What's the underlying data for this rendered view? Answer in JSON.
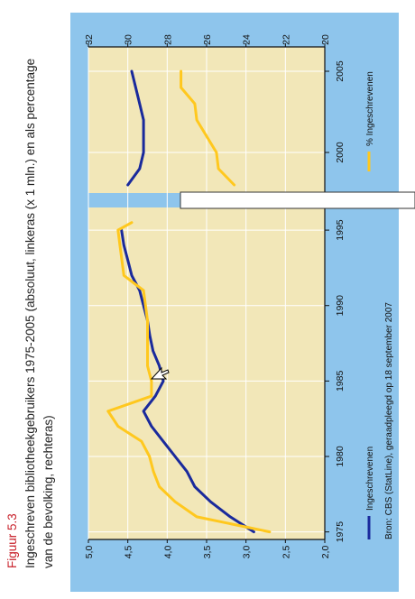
{
  "figure": {
    "label": "Figuur 5.3",
    "caption_line1": "Ingeschreven bibliotheekgebruikers 1975-2005 (absoluut, linkeras (x 1 mln.) en als percentage",
    "caption_line2": "van de bevolking, rechteras)"
  },
  "legend": {
    "series_1_label": "Ingeschrevenen",
    "series_2_label": "% Ingeschrevenen"
  },
  "source": "Bron: CBS (StatLine), geraadpleegd op 18 september 2007",
  "colors": {
    "panel_bg": "#8ec5ec",
    "plot_bg": "#f2e7b8",
    "grid": "#ffffff",
    "series_1": "#1a2a9c",
    "series_2": "#ffc81e",
    "label_red": "#c8202a"
  },
  "chart_data": {
    "type": "line",
    "rotated": "90-deg-clockwise",
    "axis_break": "between 1995 and 1998",
    "x_left_ticks": [
      "1975",
      "1980",
      "1985",
      "1990",
      "1995"
    ],
    "x_right_ticks": [
      "2000",
      "2005"
    ],
    "xlim_left": [
      1974.5,
      1996.5
    ],
    "xlim_right": [
      1997.5,
      2006.5
    ],
    "ylim_left": [
      2.0,
      5.0
    ],
    "ylim_right": [
      20,
      32
    ],
    "y_left_ticks": [
      "2,0",
      "2,5",
      "3,0",
      "3,5",
      "4,0",
      "4,5",
      "5,0"
    ],
    "y_right_ticks": [
      "20",
      "22",
      "24",
      "26",
      "28",
      "30",
      "32"
    ],
    "grid": true,
    "series": [
      {
        "name": "Ingeschrevenen",
        "axis": "left",
        "points": [
          [
            1975,
            2.9
          ],
          [
            1976,
            3.2
          ],
          [
            1977,
            3.45
          ],
          [
            1978,
            3.65
          ],
          [
            1979,
            3.75
          ],
          [
            1980,
            3.9
          ],
          [
            1981,
            4.05
          ],
          [
            1982,
            4.2
          ],
          [
            1983,
            4.3
          ],
          [
            1984,
            4.15
          ],
          [
            1985,
            4.05
          ],
          [
            1986,
            4.1
          ],
          [
            1987,
            4.18
          ],
          [
            1988,
            4.22
          ],
          [
            1989,
            4.25
          ],
          [
            1990,
            4.3
          ],
          [
            1991,
            4.35
          ],
          [
            1992,
            4.45
          ],
          [
            1993,
            4.5
          ],
          [
            1994,
            4.55
          ],
          [
            1995,
            4.58
          ],
          [
            1998,
            4.5
          ],
          [
            1999,
            4.35
          ],
          [
            2000,
            4.3
          ],
          [
            2001,
            4.3
          ],
          [
            2002,
            4.3
          ],
          [
            2003,
            4.35
          ],
          [
            2004,
            4.4
          ],
          [
            2005,
            4.45
          ]
        ]
      },
      {
        "name": "% Ingeschrevenen",
        "axis": "right",
        "points": [
          [
            1975,
            22.8
          ],
          [
            1976,
            26.5
          ],
          [
            1977,
            27.6
          ],
          [
            1978,
            28.4
          ],
          [
            1979,
            28.7
          ],
          [
            1980,
            28.9
          ],
          [
            1981,
            29.3
          ],
          [
            1982,
            30.5
          ],
          [
            1983,
            31.0
          ],
          [
            1984,
            28.8
          ],
          [
            1985,
            28.8
          ],
          [
            1986,
            29.0
          ],
          [
            1987,
            29.0
          ],
          [
            1988,
            29.0
          ],
          [
            1989,
            29.0
          ],
          [
            1990,
            29.1
          ],
          [
            1991,
            29.2
          ],
          [
            1992,
            30.2
          ],
          [
            1993,
            30.3
          ],
          [
            1994,
            30.4
          ],
          [
            1995,
            30.5
          ],
          [
            1995.5,
            29.8
          ],
          [
            1998,
            24.6
          ],
          [
            1999,
            25.4
          ],
          [
            2000,
            25.5
          ],
          [
            2001,
            26.0
          ],
          [
            2002,
            26.5
          ],
          [
            2003,
            26.6
          ],
          [
            2004,
            27.3
          ],
          [
            2005,
            27.3
          ]
        ]
      }
    ]
  }
}
